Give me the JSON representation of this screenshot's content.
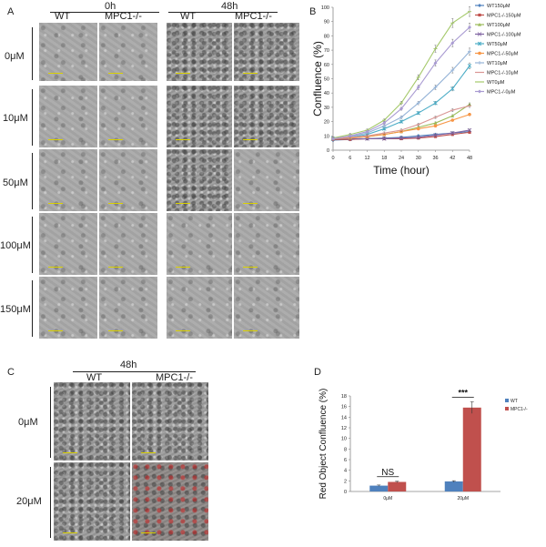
{
  "panels": {
    "a": {
      "letter": "A",
      "time_left": "0h",
      "time_right": "48h",
      "col_wt": "WT",
      "col_ko": "MPC1-/-",
      "rows": [
        "0μM",
        "10μM",
        "50μM",
        "100μM",
        "150μM"
      ]
    },
    "c": {
      "letter": "C",
      "time": "48h",
      "col_wt": "WT",
      "col_ko": "MPC1-/-",
      "rows": [
        "0μM",
        "20μM"
      ]
    }
  },
  "colors": {
    "wt_bar": "#4f81bd",
    "ko_bar": "#c0504d"
  },
  "chart_data": [
    {
      "panel": "B",
      "type": "line",
      "ylabel": "Confluence (%)",
      "xlabel": "Time (hour)",
      "x": [
        0,
        6,
        12,
        18,
        24,
        30,
        36,
        42,
        48
      ],
      "xlim": [
        0,
        48
      ],
      "ylim": [
        0,
        100
      ],
      "yticks": [
        0,
        10,
        20,
        30,
        40,
        50,
        60,
        70,
        80,
        90,
        100
      ],
      "legend_position": "right",
      "series": [
        {
          "name": "WT150μM",
          "color": "#4f81bd",
          "marker": "diamond",
          "values": [
            7,
            7.5,
            8,
            8.5,
            9,
            10,
            11,
            12,
            13
          ]
        },
        {
          "name": "MPC1-/-150μM",
          "color": "#c0504d",
          "marker": "square",
          "values": [
            7.5,
            7.5,
            8,
            8,
            8,
            8.5,
            9.5,
            11,
            12.5
          ]
        },
        {
          "name": "WT100μM",
          "color": "#9bbb59",
          "marker": "triangle",
          "values": [
            8,
            8.5,
            9.5,
            11,
            13,
            16,
            19,
            24,
            32
          ]
        },
        {
          "name": "MPC1-/-100μM",
          "color": "#8064a2",
          "marker": "x",
          "values": [
            8,
            8,
            8,
            8,
            8.5,
            9,
            10.5,
            12,
            14
          ]
        },
        {
          "name": "WT50μM",
          "color": "#4bacc6",
          "marker": "star",
          "values": [
            8,
            9,
            11,
            15,
            20,
            26,
            33,
            43,
            59
          ]
        },
        {
          "name": "MPC1-/-50μM",
          "color": "#f79646",
          "marker": "circle",
          "values": [
            8,
            8.5,
            9.5,
            11,
            13,
            15,
            17,
            21,
            25
          ]
        },
        {
          "name": "WT10μM",
          "color": "#95b3d7",
          "marker": "plus",
          "values": [
            8,
            9.5,
            12,
            17,
            23,
            33,
            44,
            56,
            69
          ]
        },
        {
          "name": "MPC1-/-10μM",
          "color": "#d99694",
          "marker": "dash",
          "values": [
            8,
            9,
            10,
            12,
            14,
            18,
            23,
            28,
            31
          ]
        },
        {
          "name": "WT0μM",
          "color": "#a5c96b",
          "marker": "dash",
          "values": [
            8.5,
            11,
            14,
            21,
            33,
            51,
            71,
            89,
            97
          ]
        },
        {
          "name": "MPC1-/-0μM",
          "color": "#a99bd2",
          "marker": "diamond",
          "values": [
            8,
            10,
            13,
            19,
            29,
            44,
            61,
            75,
            86
          ]
        }
      ]
    },
    {
      "panel": "D",
      "type": "bar",
      "ylabel": "Red Object Confluence (%)",
      "categories": [
        "0μM",
        "20μM"
      ],
      "ylim": [
        0,
        18
      ],
      "yticks": [
        0,
        2,
        4,
        6,
        8,
        10,
        12,
        14,
        16,
        18
      ],
      "legend_position": "top-right",
      "series": [
        {
          "name": "WT",
          "values": [
            1.1,
            1.9
          ]
        },
        {
          "name": "MPC1-/-",
          "values": [
            1.8,
            15.8
          ]
        }
      ],
      "annotations": [
        "NS",
        "***"
      ]
    }
  ]
}
